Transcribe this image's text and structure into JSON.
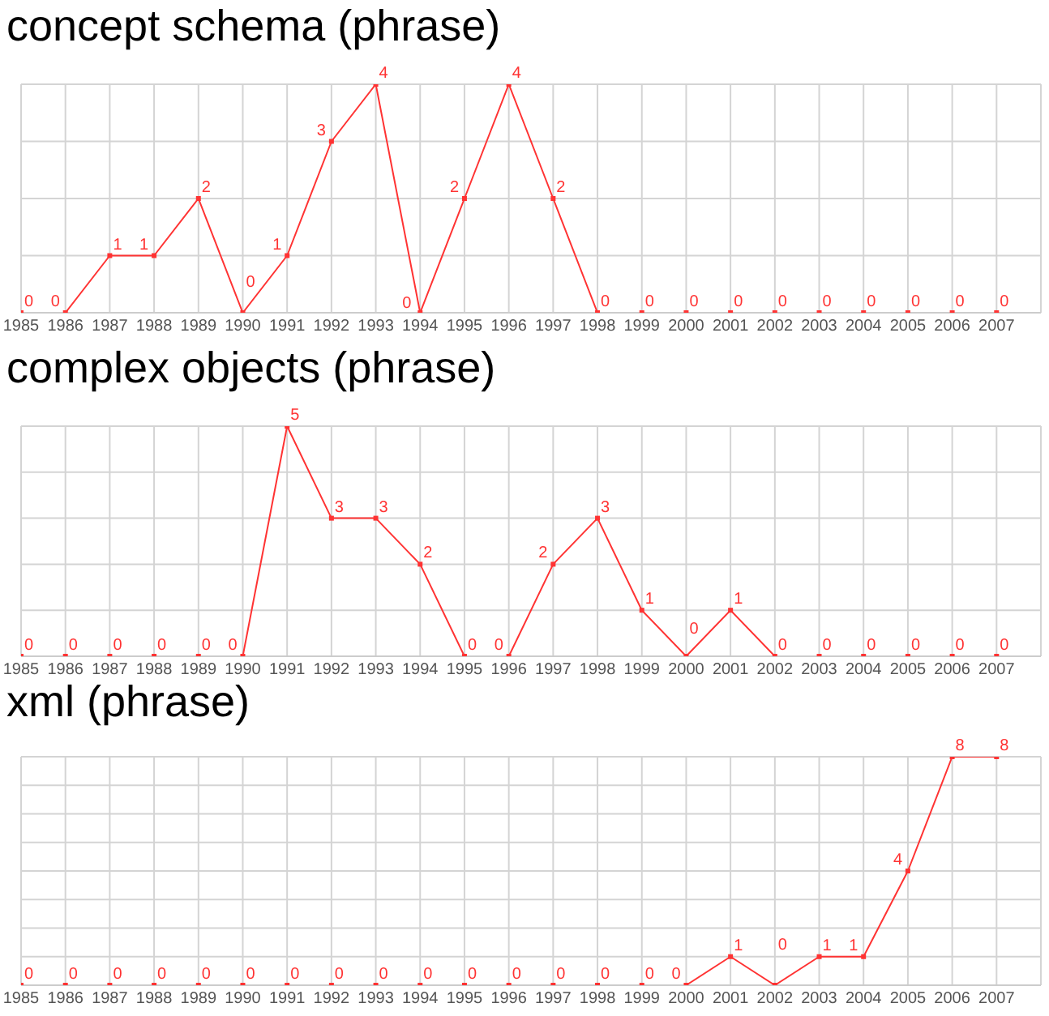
{
  "chart_data": [
    {
      "type": "line",
      "title": "concept schema (phrase)",
      "categories": [
        "1985",
        "1986",
        "1987",
        "1988",
        "1989",
        "1990",
        "1991",
        "1992",
        "1993",
        "1994",
        "1995",
        "1996",
        "1997",
        "1998",
        "1999",
        "2000",
        "2001",
        "2002",
        "2003",
        "2004",
        "2005",
        "2006",
        "2007"
      ],
      "series": [
        {
          "color": "#ff3333",
          "values": [
            0,
            0,
            1,
            1,
            2,
            0,
            1,
            3,
            4,
            0,
            2,
            4,
            2,
            0,
            0,
            0,
            0,
            0,
            0,
            0,
            0,
            0,
            0
          ]
        }
      ],
      "ylim": [
        0,
        4
      ],
      "yticks": [
        {
          "value": 0,
          "label": null
        },
        {
          "value": 1,
          "label": null
        },
        {
          "value": 2,
          "label": null
        },
        {
          "value": 3,
          "label": null
        },
        {
          "value": 4,
          "label": null
        }
      ],
      "grid": true,
      "tick_labels": "x",
      "data_labels": true,
      "marker": "square"
    },
    {
      "type": "line",
      "title": "complex objects (phrase)",
      "categories": [
        "1985",
        "1986",
        "1987",
        "1988",
        "1989",
        "1990",
        "1991",
        "1992",
        "1993",
        "1994",
        "1995",
        "1996",
        "1997",
        "1998",
        "1999",
        "2000",
        "2001",
        "2002",
        "2003",
        "2004",
        "2005",
        "2006",
        "2007"
      ],
      "series": [
        {
          "color": "#ff3333",
          "values": [
            0,
            0,
            0,
            0,
            0,
            0,
            5,
            3,
            3,
            2,
            0,
            0,
            2,
            3,
            1,
            0,
            1,
            0,
            0,
            0,
            0,
            0,
            0
          ]
        }
      ],
      "ylim": [
        0,
        5
      ],
      "yticks": [
        {
          "value": 0,
          "label": null
        },
        {
          "value": 1,
          "label": null
        },
        {
          "value": 2,
          "label": null
        },
        {
          "value": 3,
          "label": null
        },
        {
          "value": 4,
          "label": null
        },
        {
          "value": 5,
          "label": null
        }
      ],
      "grid": true,
      "tick_labels": "x",
      "data_labels": true,
      "marker": "square"
    },
    {
      "type": "line",
      "title": "xml (phrase)",
      "categories": [
        "1985",
        "1986",
        "1987",
        "1988",
        "1989",
        "1990",
        "1991",
        "1992",
        "1993",
        "1994",
        "1995",
        "1996",
        "1997",
        "1998",
        "1999",
        "2000",
        "2001",
        "2002",
        "2003",
        "2004",
        "2005",
        "2006",
        "2007"
      ],
      "series": [
        {
          "color": "#ff3333",
          "values": [
            0,
            0,
            0,
            0,
            0,
            0,
            0,
            0,
            0,
            0,
            0,
            0,
            0,
            0,
            0,
            0,
            1,
            0,
            1,
            1,
            4,
            8,
            8
          ]
        }
      ],
      "ylim": [
        0,
        8
      ],
      "yticks": [
        {
          "value": 0,
          "label": null
        },
        {
          "value": 1,
          "label": null
        },
        {
          "value": 2,
          "label": null
        },
        {
          "value": 3,
          "label": null
        },
        {
          "value": 4,
          "label": null
        },
        {
          "value": 5,
          "label": null
        },
        {
          "value": 6,
          "label": null
        },
        {
          "value": 7,
          "label": null
        },
        {
          "value": 8,
          "label": null
        }
      ],
      "grid": true,
      "tick_labels": "x",
      "data_labels": true,
      "marker": "square"
    }
  ]
}
